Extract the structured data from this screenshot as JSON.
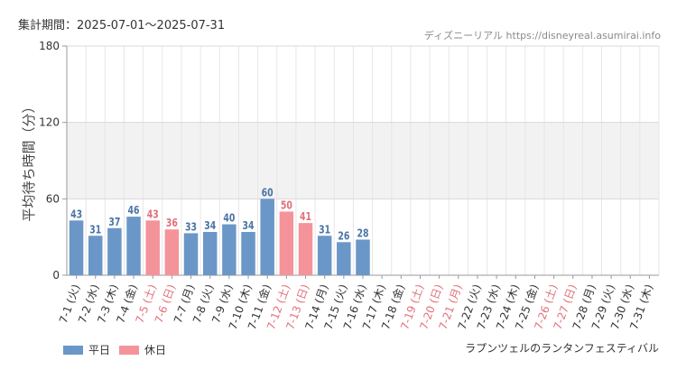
{
  "header": {
    "period": "集計期間：2025-07-01～2025-07-31",
    "site": "ディズニーリアル https://disneyreal.asumirai.info"
  },
  "footer": {
    "attraction": "ラプンツェルのランタンフェスティバル"
  },
  "legend": [
    {
      "label": "平日",
      "color": "#6a97c8"
    },
    {
      "label": "休日",
      "color": "#f5939a"
    }
  ],
  "colors": {
    "weekday": "#6a97c8",
    "holiday": "#f5939a",
    "weekday_label": "#4a74a5",
    "holiday_label": "#e2707a",
    "band": "#f2f2f2",
    "grid": "#e6e6e6"
  },
  "chart_data": {
    "type": "bar",
    "ylabel": "平均待ち時間（分）",
    "ylim": [
      0,
      180
    ],
    "yticks": [
      0,
      60,
      120,
      180
    ],
    "band": [
      60,
      120
    ],
    "grid": true,
    "legend_position": "bottom-left",
    "categories": [
      "7-1 (火)",
      "7-2 (水)",
      "7-3 (木)",
      "7-4 (金)",
      "7-5 (土)",
      "7-6 (日)",
      "7-7 (月)",
      "7-8 (火)",
      "7-9 (水)",
      "7-10 (木)",
      "7-11 (金)",
      "7-12 (土)",
      "7-13 (日)",
      "7-14 (月)",
      "7-15 (火)",
      "7-16 (水)",
      "7-17 (木)",
      "7-18 (金)",
      "7-19 (土)",
      "7-20 (日)",
      "7-21 (月)",
      "7-22 (火)",
      "7-23 (水)",
      "7-24 (木)",
      "7-25 (金)",
      "7-26 (土)",
      "7-27 (日)",
      "7-28 (月)",
      "7-29 (火)",
      "7-30 (水)",
      "7-31 (木)"
    ],
    "holiday": [
      false,
      false,
      false,
      false,
      true,
      true,
      false,
      false,
      false,
      false,
      false,
      true,
      true,
      false,
      false,
      false,
      false,
      false,
      true,
      true,
      true,
      false,
      false,
      false,
      false,
      true,
      true,
      false,
      false,
      false,
      false
    ],
    "series": [
      {
        "name": "平日",
        "values": [
          43,
          31,
          37,
          46,
          null,
          null,
          33,
          34,
          40,
          34,
          60,
          null,
          null,
          31,
          26,
          28,
          null,
          null,
          null,
          null,
          null,
          null,
          null,
          null,
          null,
          null,
          null,
          null,
          null,
          null,
          null
        ]
      },
      {
        "name": "休日",
        "values": [
          null,
          null,
          null,
          null,
          43,
          36,
          null,
          null,
          null,
          null,
          null,
          50,
          41,
          null,
          null,
          null,
          null,
          null,
          null,
          null,
          null,
          null,
          null,
          null,
          null,
          null,
          null,
          null,
          null,
          null,
          null
        ]
      }
    ]
  }
}
